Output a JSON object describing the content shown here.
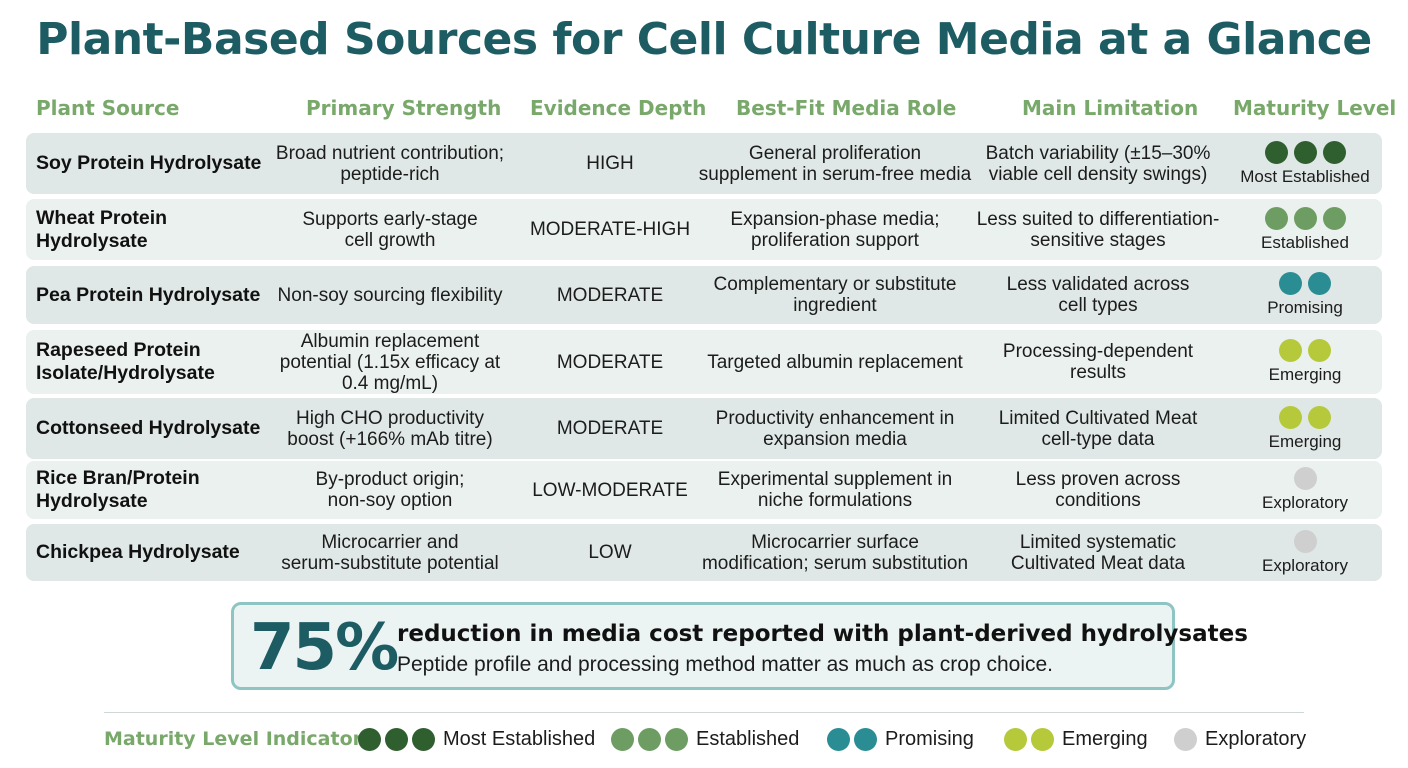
{
  "title": "Plant-Based Sources for Cell Culture Media at a Glance",
  "columns": {
    "source": "Plant Source",
    "strength": "Primary Strength",
    "evidence": "Evidence Depth",
    "role": "Best-Fit Media Role",
    "limitation": "Main Limitation",
    "maturity": "Maturity Level"
  },
  "colors": {
    "title": "#1d5c63",
    "header": "#79a86b",
    "most_established": "#2f5f2f",
    "established": "#6d9d62",
    "promising": "#2a8d94",
    "emerging": "#b5c93b",
    "exploratory": "#cfcfcf"
  },
  "rows": [
    {
      "source": [
        "Soy Protein Hydrolysate"
      ],
      "strength": [
        "Broad nutrient contribution;",
        "peptide-rich"
      ],
      "evidence": "HIGH",
      "role": [
        "General proliferation",
        "supplement in serum-free media"
      ],
      "limitation": [
        "Batch variability (±15–30%",
        "viable cell density swings)"
      ],
      "maturity": "Most Established",
      "dots": 3,
      "dot_color": "#2f5f2f"
    },
    {
      "source": [
        "Wheat Protein",
        "Hydrolysate"
      ],
      "strength": [
        "Supports early-stage",
        "cell growth"
      ],
      "evidence": "MODERATE-HIGH",
      "role": [
        "Expansion-phase media;",
        "proliferation support"
      ],
      "limitation": [
        "Less suited to differentiation-",
        "sensitive stages"
      ],
      "maturity": "Established",
      "dots": 3,
      "dot_color": "#6d9d62"
    },
    {
      "source": [
        "Pea Protein Hydrolysate"
      ],
      "strength": [
        "Non-soy sourcing flexibility"
      ],
      "evidence": "MODERATE",
      "role": [
        "Complementary or substitute",
        "ingredient"
      ],
      "limitation": [
        "Less validated across",
        "cell types"
      ],
      "maturity": "Promising",
      "dots": 2,
      "dot_color": "#2a8d94"
    },
    {
      "source": [
        "Rapeseed Protein",
        "Isolate/Hydrolysate"
      ],
      "strength": [
        "Albumin replacement",
        "potential (1.15x efficacy at",
        "0.4 mg/mL)"
      ],
      "evidence": "MODERATE",
      "role": [
        "Targeted albumin replacement"
      ],
      "limitation": [
        "Processing-dependent",
        "results"
      ],
      "maturity": "Emerging",
      "dots": 2,
      "dot_color": "#b5c93b"
    },
    {
      "source": [
        "Cottonseed Hydrolysate"
      ],
      "strength": [
        "High CHO productivity",
        "boost (+166% mAb titre)"
      ],
      "evidence": "MODERATE",
      "role": [
        "Productivity enhancement in",
        "expansion media"
      ],
      "limitation": [
        "Limited Cultivated Meat",
        "cell-type data"
      ],
      "maturity": "Emerging",
      "dots": 2,
      "dot_color": "#b5c93b"
    },
    {
      "source": [
        "Rice Bran/Protein",
        "Hydrolysate"
      ],
      "strength": [
        "By-product origin;",
        "non-soy option"
      ],
      "evidence": "LOW-MODERATE",
      "role": [
        "Experimental supplement in",
        "niche formulations"
      ],
      "limitation": [
        "Less proven across",
        "conditions"
      ],
      "maturity": "Exploratory",
      "dots": 1,
      "dot_color": "#cfcfcf"
    },
    {
      "source": [
        "Chickpea Hydrolysate"
      ],
      "strength": [
        "Microcarrier and",
        "serum-substitute potential"
      ],
      "evidence": "LOW",
      "role": [
        "Microcarrier surface",
        "modification; serum substitution"
      ],
      "limitation": [
        "Limited systematic",
        "Cultivated Meat data"
      ],
      "maturity": "Exploratory",
      "dots": 1,
      "dot_color": "#cfcfcf"
    }
  ],
  "callout": {
    "stat": "75%",
    "headline": "reduction in media cost reported with plant-derived hydrolysates",
    "subtext": "Peptide profile and processing method matter as much as crop choice."
  },
  "legend": {
    "title": "Maturity Level Indicators",
    "items": [
      {
        "label": "Most Established",
        "dots": 3,
        "color": "#2f5f2f"
      },
      {
        "label": "Established",
        "dots": 3,
        "color": "#6d9d62"
      },
      {
        "label": "Promising",
        "dots": 2,
        "color": "#2a8d94"
      },
      {
        "label": "Emerging",
        "dots": 2,
        "color": "#b5c93b"
      },
      {
        "label": "Exploratory",
        "dots": 1,
        "color": "#cfcfcf"
      }
    ]
  }
}
